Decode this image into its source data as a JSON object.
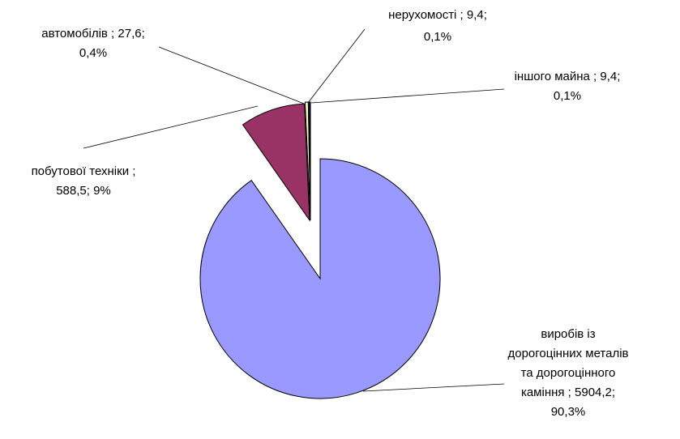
{
  "chart_data": {
    "type": "pie",
    "title": "",
    "exploded": true,
    "legend": "none",
    "slices": [
      {
        "category": "виробів із дорогоцінних металів та дорогоцінного каміння",
        "value": 5904.2,
        "percent": "90,3%",
        "color": "#9999ff",
        "label_lines": [
          "виробів із",
          "дорогоцінних металів",
          "та дорогоцінного",
          "каміння ; 5904,2;",
          "90,3%"
        ]
      },
      {
        "category": "побутової техніки",
        "value": 588.5,
        "percent": "9%",
        "color": "#993366",
        "label_lines": [
          "побутової техніки ;",
          "588,5; 9%"
        ]
      },
      {
        "category": "автомобілів",
        "value": 27.6,
        "percent": "0,4%",
        "color": "#ffffcc",
        "label_lines": [
          "автомобілів ; 27,6;",
          "0,4%"
        ]
      },
      {
        "category": "нерухомості",
        "value": 9.4,
        "percent": "0,1%",
        "color": "#cccccc",
        "label_lines": [
          "нерухомості ; 9,4;",
          "0,1%"
        ]
      },
      {
        "category": "іншого майна",
        "value": 9.4,
        "percent": "0,1%",
        "color": "#000080",
        "label_lines": [
          "іншого майна ; 9,4;",
          "0,1%"
        ]
      }
    ]
  }
}
